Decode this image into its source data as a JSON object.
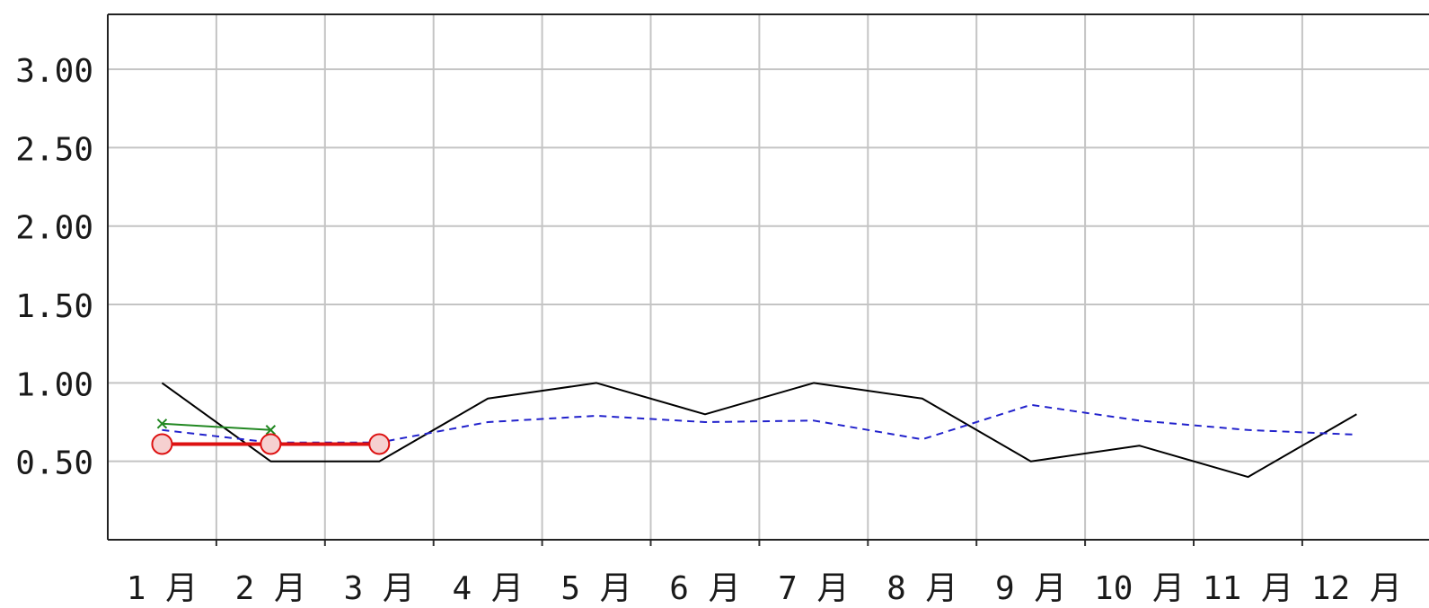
{
  "chart_data": {
    "type": "line",
    "categories": [
      "1 月",
      "2 月",
      "3 月",
      "4 月",
      "5 月",
      "6 月",
      "7 月",
      "8 月",
      "9 月",
      "10 月",
      "11 月",
      "12 月"
    ],
    "y_tick_labels": [
      "3.00",
      "2.50",
      "2.00",
      "1.50",
      "1.00",
      "0.50"
    ],
    "y_ticks": [
      3.0,
      2.5,
      2.0,
      1.5,
      1.0,
      0.5
    ],
    "ylim": [
      0,
      3.35
    ],
    "grid": true,
    "series": [
      {
        "color": "#000000",
        "style": "solid",
        "marker": "none",
        "values": [
          1.0,
          0.5,
          0.5,
          0.9,
          1.0,
          0.8,
          1.0,
          0.9,
          0.5,
          0.6,
          0.4,
          0.8
        ]
      },
      {
        "color": "#2222cc",
        "style": "dashed",
        "marker": "none",
        "values": [
          0.7,
          0.62,
          0.62,
          0.75,
          0.79,
          0.75,
          0.76,
          0.64,
          0.86,
          0.76,
          0.7,
          0.67
        ]
      },
      {
        "color": "#228822",
        "style": "solid",
        "marker": "x",
        "values": [
          0.74,
          0.7,
          null,
          null,
          null,
          null,
          null,
          null,
          null,
          null,
          null,
          null
        ]
      },
      {
        "color": "#dd1111",
        "style": "solid",
        "marker": "circle",
        "values": [
          0.61,
          0.61,
          0.61,
          null,
          null,
          null,
          null,
          null,
          null,
          null,
          null,
          null
        ]
      }
    ]
  }
}
